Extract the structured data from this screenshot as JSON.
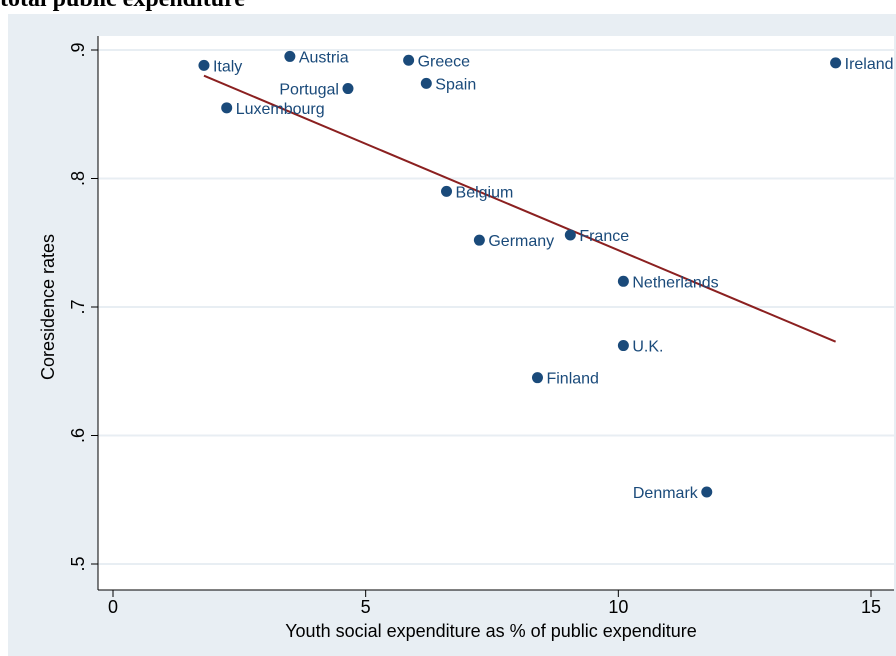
{
  "figure": {
    "header_text": "total public expenditure"
  },
  "chart_data": {
    "type": "scatter",
    "title": "",
    "xlabel": "Youth social expenditure as % of public expenditure",
    "ylabel": "Coresidence rates",
    "xlim": [
      0,
      15
    ],
    "ylim": [
      0.5,
      0.9
    ],
    "xticks": [
      {
        "value": 0,
        "label": "0"
      },
      {
        "value": 5,
        "label": "5"
      },
      {
        "value": 10,
        "label": "10"
      },
      {
        "value": 15,
        "label": "15"
      }
    ],
    "yticks": [
      {
        "value": 0.5,
        "label": ".5"
      },
      {
        "value": 0.6,
        "label": ".6"
      },
      {
        "value": 0.7,
        "label": ".7"
      },
      {
        "value": 0.8,
        "label": ".8"
      },
      {
        "value": 0.9,
        "label": ".9"
      }
    ],
    "grid": true,
    "points": [
      {
        "label": "Italy",
        "x": 1.8,
        "y": 0.888,
        "label_side": "right"
      },
      {
        "label": "Austria",
        "x": 3.5,
        "y": 0.895,
        "label_side": "right"
      },
      {
        "label": "Greece",
        "x": 5.85,
        "y": 0.892,
        "label_side": "right"
      },
      {
        "label": "Ireland",
        "x": 14.3,
        "y": 0.89,
        "label_side": "right"
      },
      {
        "label": "Portugal",
        "x": 4.65,
        "y": 0.87,
        "label_side": "left"
      },
      {
        "label": "Spain",
        "x": 6.2,
        "y": 0.874,
        "label_side": "right"
      },
      {
        "label": "Luxembourg",
        "x": 2.25,
        "y": 0.855,
        "label_side": "right"
      },
      {
        "label": "Belgium",
        "x": 6.6,
        "y": 0.79,
        "label_side": "right"
      },
      {
        "label": "Germany",
        "x": 7.25,
        "y": 0.752,
        "label_side": "right"
      },
      {
        "label": "France",
        "x": 9.05,
        "y": 0.756,
        "label_side": "right"
      },
      {
        "label": "Netherlands",
        "x": 10.1,
        "y": 0.72,
        "label_side": "right"
      },
      {
        "label": "U.K.",
        "x": 10.1,
        "y": 0.67,
        "label_side": "right"
      },
      {
        "label": "Finland",
        "x": 8.4,
        "y": 0.645,
        "label_side": "right"
      },
      {
        "label": "Denmark",
        "x": 11.75,
        "y": 0.556,
        "label_side": "left"
      }
    ],
    "fit_line": {
      "x1": 1.8,
      "y1": 0.88,
      "x2": 14.3,
      "y2": 0.673
    },
    "colors": {
      "background": "#e8eef3",
      "plot_area": "#ffffff",
      "marker": "#1a4a7a",
      "label": "#1a4a7a",
      "fit_line": "#8b2020",
      "grid": "#e8eef3",
      "axis_text": "#000000"
    }
  }
}
